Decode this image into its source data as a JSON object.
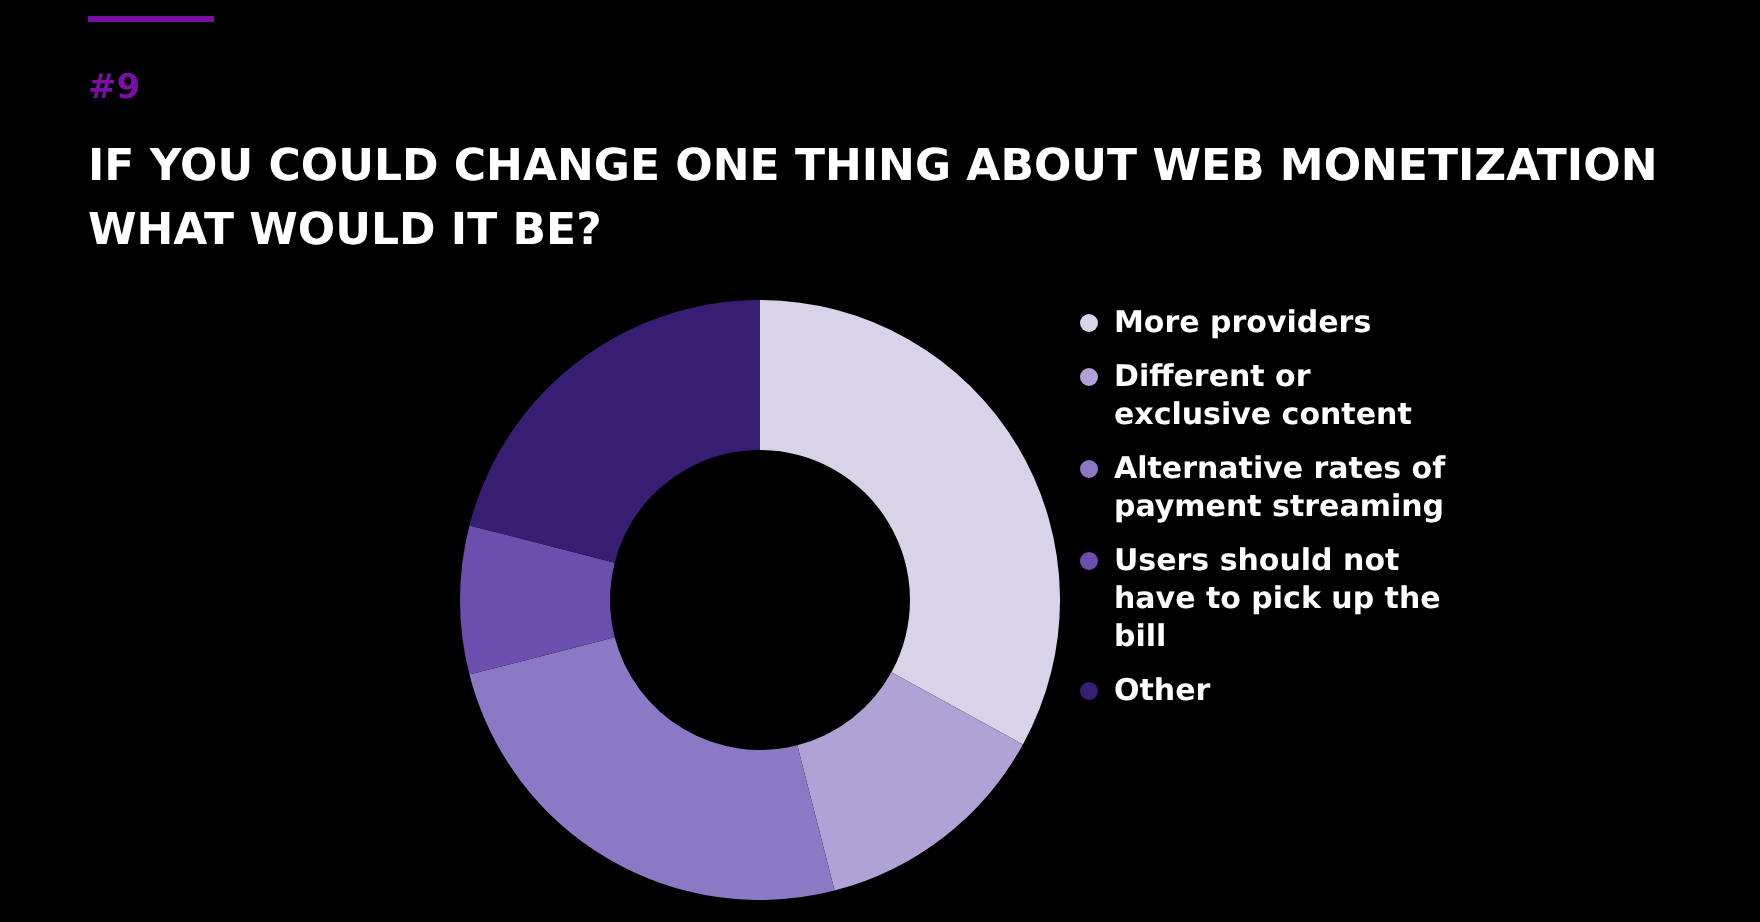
{
  "chart_data": {
    "type": "donut",
    "subtitle": "#9",
    "title": "IF YOU COULD CHANGE ONE THING ABOUT WEB MONETIZATION WHAT WOULD IT BE?",
    "categories": [
      "More providers",
      "Different or exclusive content",
      "Alternative rates of payment streaming",
      "Users should not have to pick up the bill",
      "Other"
    ],
    "values": [
      33,
      13,
      25,
      8,
      21
    ],
    "colors": [
      "#d9d3ea",
      "#b0a2d4",
      "#8c79c5",
      "#6a4fae",
      "#381e72"
    ],
    "legend": "right"
  }
}
